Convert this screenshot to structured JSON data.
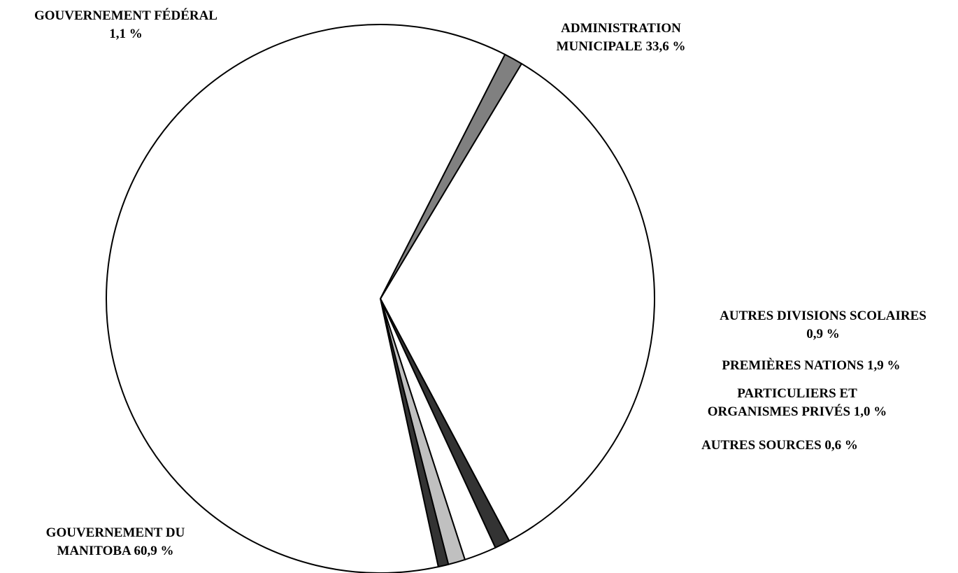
{
  "chart_data": {
    "type": "pie",
    "title": "",
    "start_angle_deg": -59,
    "direction": "clockwise",
    "slices": [
      {
        "name": "ADMINISTRATION MUNICIPALE",
        "value": 33.6,
        "color": "#ffffff",
        "label_lines": [
          "ADMINISTRATION",
          "MUNICIPALE 33,6 %"
        ]
      },
      {
        "name": "AUTRES DIVISIONS SCOLAIRES",
        "value": 0.9,
        "color": "#333333",
        "label_lines": [
          "AUTRES DIVISIONS SCOLAIRES",
          "0,9 %"
        ]
      },
      {
        "name": "PREMIÈRES NATIONS",
        "value": 1.9,
        "color": "#ffffff",
        "label_lines": [
          "PREMIÈRES NATIONS 1,9 %"
        ]
      },
      {
        "name": "PARTICULIERS ET ORGANISMES PRIVÉS",
        "value": 1.0,
        "color": "#c0c0c0",
        "label_lines": [
          "PARTICULIERS ET",
          "ORGANISMES PRIVÉS 1,0 %"
        ]
      },
      {
        "name": "AUTRES SOURCES",
        "value": 0.6,
        "color": "#333333",
        "label_lines": [
          "AUTRES SOURCES 0,6 %"
        ]
      },
      {
        "name": "GOUVERNEMENT DU MANITOBA",
        "value": 60.9,
        "color": "#ffffff",
        "label_lines": [
          "GOUVERNEMENT DU",
          "MANITOBA 60,9 %"
        ]
      },
      {
        "name": "GOUVERNEMENT FÉDÉRAL",
        "value": 1.1,
        "color": "#808080",
        "label_lines": [
          "GOUVERNEMENT FÉDÉRAL",
          "1,1 %"
        ]
      }
    ]
  }
}
